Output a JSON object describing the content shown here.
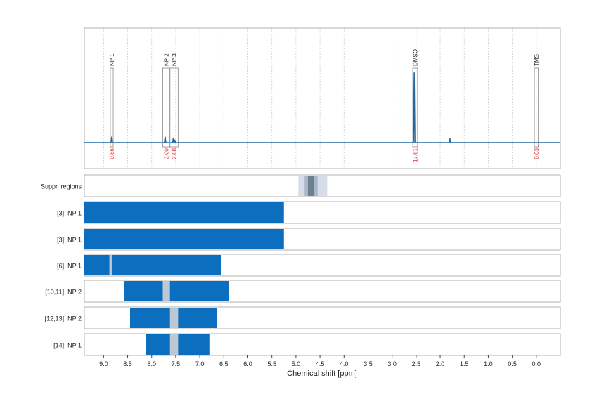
{
  "chart_data": {
    "type": "nmr-spectrum-with-region-tracks",
    "xlabel": "Chemical shift [ppm]",
    "xlim": [
      9.4,
      -0.5
    ],
    "x_reversed": true,
    "x_ticks": [
      "9.0",
      "8.5",
      "8.0",
      "7.5",
      "7.0",
      "6.5",
      "6.0",
      "5.5",
      "5.0",
      "4.5",
      "4.0",
      "3.5",
      "3.0",
      "2.5",
      "2.0",
      "1.5",
      "1.0",
      "0.5",
      "0.0"
    ],
    "grid": "vertical-dashed",
    "spectrum": {
      "color": "#1f6aa5",
      "peaks": [
        {
          "ppm": 8.83,
          "height": 0.08
        },
        {
          "ppm": 7.72,
          "height": 0.08
        },
        {
          "ppm": 7.55,
          "height": 0.06
        },
        {
          "ppm": 7.52,
          "height": 0.04
        },
        {
          "ppm": 2.54,
          "height": 0.95
        },
        {
          "ppm": 1.8,
          "height": 0.06
        }
      ]
    },
    "annotations": [
      {
        "label": "NP 1",
        "ppm_from": 8.86,
        "ppm_to": 8.8,
        "integral": "0.86"
      },
      {
        "label": "NP 2",
        "ppm_from": 7.77,
        "ppm_to": 7.62,
        "integral": "2.00"
      },
      {
        "label": "NP 3",
        "ppm_from": 7.62,
        "ppm_to": 7.45,
        "integral": "2.88"
      },
      {
        "label": "DMSO",
        "ppm_from": 2.57,
        "ppm_to": 2.47,
        "integral": "17.61"
      },
      {
        "label": "TMS",
        "ppm_from": 0.04,
        "ppm_to": -0.04,
        "integral": "0.03"
      }
    ],
    "tracks": [
      {
        "label": "Suppr. regions",
        "bars": [
          {
            "from": 4.95,
            "to": 4.35,
            "color": "#d5dee8"
          },
          {
            "from": 4.82,
            "to": 4.55,
            "color": "#a9b8c8"
          },
          {
            "from": 4.75,
            "to": 4.62,
            "color": "#6e7f90"
          }
        ]
      },
      {
        "label": "[3]; NP 1",
        "bars": [
          {
            "from": 9.4,
            "to": 5.25,
            "color": "#0b6ebf"
          }
        ],
        "gaps": []
      },
      {
        "label": "[3]; NP 1",
        "bars": [
          {
            "from": 9.4,
            "to": 5.25,
            "color": "#0b6ebf"
          }
        ],
        "gaps": []
      },
      {
        "label": "[6]; NP 1",
        "bars": [
          {
            "from": 9.4,
            "to": 6.55,
            "color": "#0b6ebf"
          }
        ],
        "gaps": [
          {
            "from": 8.88,
            "to": 8.83
          }
        ]
      },
      {
        "label": "[10,11]; NP 2",
        "bars": [
          {
            "from": 8.58,
            "to": 6.4,
            "color": "#0b6ebf"
          }
        ],
        "gaps": [
          {
            "from": 7.77,
            "to": 7.62
          }
        ]
      },
      {
        "label": "[12,13]; NP 2",
        "bars": [
          {
            "from": 8.45,
            "to": 6.65,
            "color": "#0b6ebf"
          }
        ],
        "gaps": [
          {
            "from": 7.62,
            "to": 7.45
          }
        ]
      },
      {
        "label": "[14]; NP 1",
        "bars": [
          {
            "from": 8.12,
            "to": 6.8,
            "color": "#0b6ebf"
          }
        ],
        "gaps": [
          {
            "from": 7.62,
            "to": 7.45
          }
        ]
      }
    ],
    "gap_color": "#bcc8d4",
    "annotation_color": "#e03030"
  }
}
